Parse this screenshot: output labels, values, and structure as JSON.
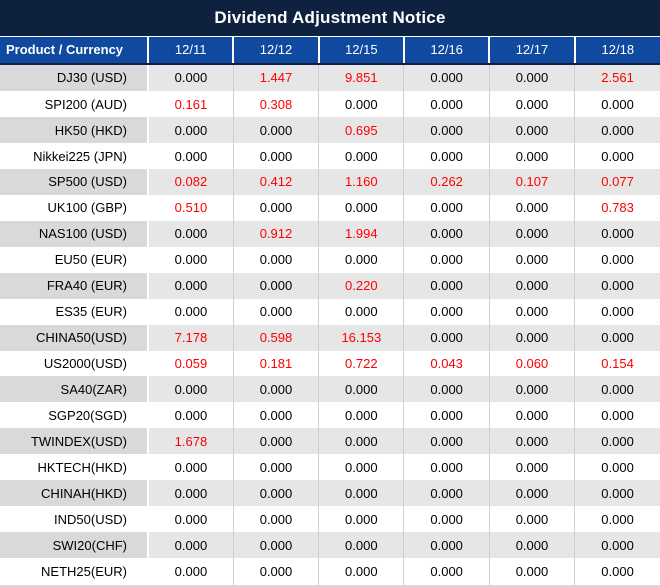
{
  "colors": {
    "title_bg": "#0E2240",
    "header_bg": "#0F4AA0",
    "row_gray": "#E7E6E6",
    "product_gray": "#D9D9D9",
    "grid": "#D0CECE",
    "red": "#FF0000",
    "text": "#000000"
  },
  "chart_data": {
    "type": "table",
    "title": "Dividend Adjustment Notice",
    "product_header": "Product / Currency",
    "date_columns": [
      "12/11",
      "12/12",
      "12/15",
      "12/16",
      "12/17",
      "12/18"
    ],
    "rows": [
      {
        "product": "DJ30 (USD)",
        "values": [
          "0.000",
          "1.447",
          "9.851",
          "0.000",
          "0.000",
          "2.561"
        ],
        "red": [
          false,
          true,
          true,
          false,
          false,
          true
        ]
      },
      {
        "product": "SPI200 (AUD)",
        "values": [
          "0.161",
          "0.308",
          "0.000",
          "0.000",
          "0.000",
          "0.000"
        ],
        "red": [
          true,
          true,
          false,
          false,
          false,
          false
        ]
      },
      {
        "product": "HK50 (HKD)",
        "values": [
          "0.000",
          "0.000",
          "0.695",
          "0.000",
          "0.000",
          "0.000"
        ],
        "red": [
          false,
          false,
          true,
          false,
          false,
          false
        ]
      },
      {
        "product": "Nikkei225 (JPN)",
        "values": [
          "0.000",
          "0.000",
          "0.000",
          "0.000",
          "0.000",
          "0.000"
        ],
        "red": [
          false,
          false,
          false,
          false,
          false,
          false
        ]
      },
      {
        "product": "SP500 (USD)",
        "values": [
          "0.082",
          "0.412",
          "1.160",
          "0.262",
          "0.107",
          "0.077"
        ],
        "red": [
          true,
          true,
          true,
          true,
          true,
          true
        ]
      },
      {
        "product": "UK100 (GBP)",
        "values": [
          "0.510",
          "0.000",
          "0.000",
          "0.000",
          "0.000",
          "0.783"
        ],
        "red": [
          true,
          false,
          false,
          false,
          false,
          true
        ]
      },
      {
        "product": "NAS100 (USD)",
        "values": [
          "0.000",
          "0.912",
          "1.994",
          "0.000",
          "0.000",
          "0.000"
        ],
        "red": [
          false,
          true,
          true,
          false,
          false,
          false
        ]
      },
      {
        "product": "EU50 (EUR)",
        "values": [
          "0.000",
          "0.000",
          "0.000",
          "0.000",
          "0.000",
          "0.000"
        ],
        "red": [
          false,
          false,
          false,
          false,
          false,
          false
        ]
      },
      {
        "product": "FRA40 (EUR)",
        "values": [
          "0.000",
          "0.000",
          "0.220",
          "0.000",
          "0.000",
          "0.000"
        ],
        "red": [
          false,
          false,
          true,
          false,
          false,
          false
        ]
      },
      {
        "product": "ES35 (EUR)",
        "values": [
          "0.000",
          "0.000",
          "0.000",
          "0.000",
          "0.000",
          "0.000"
        ],
        "red": [
          false,
          false,
          false,
          false,
          false,
          false
        ]
      },
      {
        "product": "CHINA50(USD)",
        "values": [
          "7.178",
          "0.598",
          "16.153",
          "0.000",
          "0.000",
          "0.000"
        ],
        "red": [
          true,
          true,
          true,
          false,
          false,
          false
        ]
      },
      {
        "product": "US2000(USD)",
        "values": [
          "0.059",
          "0.181",
          "0.722",
          "0.043",
          "0.060",
          "0.154"
        ],
        "red": [
          true,
          true,
          true,
          true,
          true,
          true
        ]
      },
      {
        "product": "SA40(ZAR)",
        "values": [
          "0.000",
          "0.000",
          "0.000",
          "0.000",
          "0.000",
          "0.000"
        ],
        "red": [
          false,
          false,
          false,
          false,
          false,
          false
        ]
      },
      {
        "product": "SGP20(SGD)",
        "values": [
          "0.000",
          "0.000",
          "0.000",
          "0.000",
          "0.000",
          "0.000"
        ],
        "red": [
          false,
          false,
          false,
          false,
          false,
          false
        ]
      },
      {
        "product": "TWINDEX(USD)",
        "values": [
          "1.678",
          "0.000",
          "0.000",
          "0.000",
          "0.000",
          "0.000"
        ],
        "red": [
          true,
          false,
          false,
          false,
          false,
          false
        ]
      },
      {
        "product": "HKTECH(HKD)",
        "values": [
          "0.000",
          "0.000",
          "0.000",
          "0.000",
          "0.000",
          "0.000"
        ],
        "red": [
          false,
          false,
          false,
          false,
          false,
          false
        ]
      },
      {
        "product": "CHINAH(HKD)",
        "values": [
          "0.000",
          "0.000",
          "0.000",
          "0.000",
          "0.000",
          "0.000"
        ],
        "red": [
          false,
          false,
          false,
          false,
          false,
          false
        ]
      },
      {
        "product": "IND50(USD)",
        "values": [
          "0.000",
          "0.000",
          "0.000",
          "0.000",
          "0.000",
          "0.000"
        ],
        "red": [
          false,
          false,
          false,
          false,
          false,
          false
        ]
      },
      {
        "product": "SWI20(CHF)",
        "values": [
          "0.000",
          "0.000",
          "0.000",
          "0.000",
          "0.000",
          "0.000"
        ],
        "red": [
          false,
          false,
          false,
          false,
          false,
          false
        ]
      },
      {
        "product": "NETH25(EUR)",
        "values": [
          "0.000",
          "0.000",
          "0.000",
          "0.000",
          "0.000",
          "0.000"
        ],
        "red": [
          false,
          false,
          false,
          false,
          false,
          false
        ]
      }
    ]
  }
}
